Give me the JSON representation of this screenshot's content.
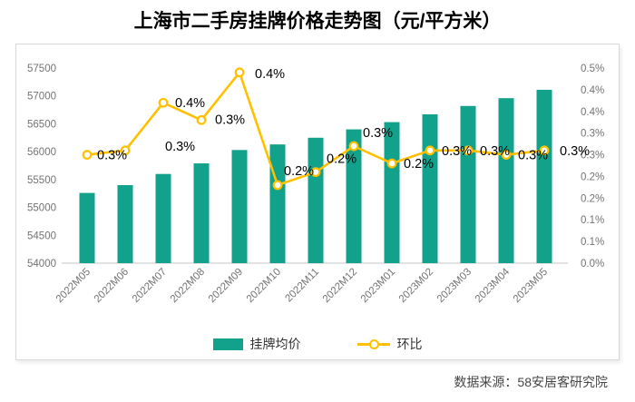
{
  "title": "上海市二手房挂牌价格走势图（元/平方米）",
  "source_note": "数据来源：58安居客研究院",
  "legend": {
    "bar_label": "挂牌均价",
    "line_label": "环比"
  },
  "colors": {
    "bar": "#12a28b",
    "line": "#ffc000",
    "marker_fill": "#ffffff",
    "axis_text": "#737373",
    "point_label_text": "#000000",
    "baseline": "#d9d9d9",
    "panel_border": "#d8d8d8"
  },
  "chart_data": {
    "type": "combo (bar + line)",
    "title": "上海市二手房挂牌价格走势图（元/平方米）",
    "categories": [
      "2022M05",
      "2022M06",
      "2022M07",
      "2022M08",
      "2022M09",
      "2022M10",
      "2022M11",
      "2022M12",
      "2023M01",
      "2023M02",
      "2023M03",
      "2023M04",
      "2023M05"
    ],
    "series": [
      {
        "name": "挂牌均价",
        "type": "bar",
        "axis": "left",
        "values": [
          55260,
          55400,
          55600,
          55790,
          56030,
          56130,
          56250,
          56400,
          56530,
          56670,
          56820,
          56960,
          57110
        ]
      },
      {
        "name": "环比",
        "type": "line",
        "axis": "right",
        "unit": "%",
        "values": [
          0.25,
          0.26,
          0.37,
          0.33,
          0.44,
          0.18,
          0.21,
          0.27,
          0.23,
          0.26,
          0.26,
          0.25,
          0.26
        ],
        "point_labels": [
          "0.3%",
          "0.3%",
          "0.4%",
          "0.3%",
          "0.4%",
          "0.2%",
          "0.2%",
          "0.3%",
          "0.2%",
          "0.3%",
          "0.3%",
          "0.3%",
          "0.3%"
        ]
      }
    ],
    "left_axis": {
      "min": 54000,
      "max": 57500,
      "step": 500,
      "tick_labels": [
        "57500",
        "57000",
        "56500",
        "56000",
        "55500",
        "55000",
        "54500",
        "54000"
      ]
    },
    "right_axis": {
      "min": 0,
      "max": 0.45,
      "step": 0.05,
      "tick_labels": [
        "0.5%",
        "0.4%",
        "0.4%",
        "0.3%",
        "0.3%",
        "0.2%",
        "0.2%",
        "0.1%",
        "0.1%",
        "0.0%"
      ]
    },
    "grid": false,
    "legend_position": "bottom"
  }
}
